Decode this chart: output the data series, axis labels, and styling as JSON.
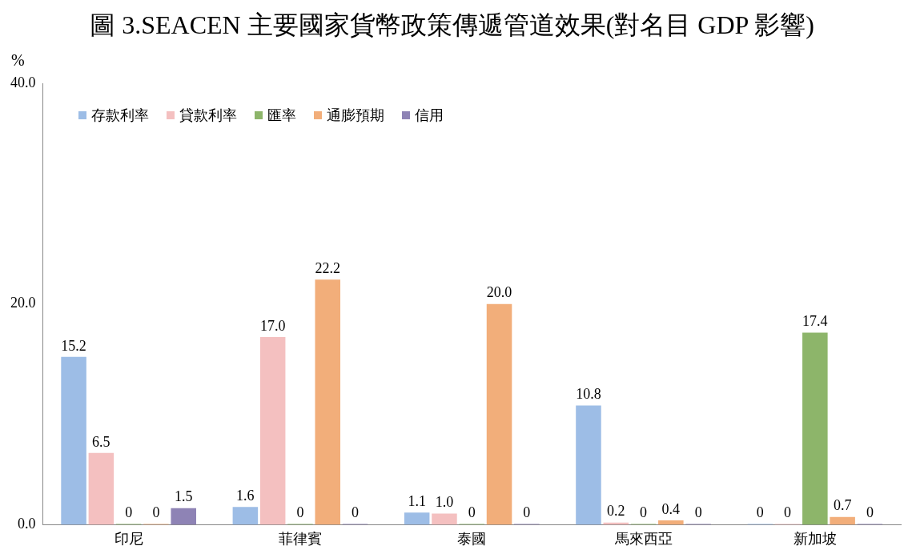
{
  "chart_data": {
    "type": "bar",
    "title": "圖 3.SEACEN 主要國家貨幣政策傳遞管道效果(對名目 GDP 影響)",
    "ylabel": "%",
    "categories": [
      "印尼",
      "菲律賓",
      "泰國",
      "馬來西亞",
      "新加坡"
    ],
    "series": [
      {
        "name": "存款利率",
        "color": "#9dbde6",
        "values": [
          15.2,
          1.6,
          1.1,
          10.8,
          0
        ],
        "value_labels": [
          "15.2",
          "1.6",
          "1.1",
          "10.8",
          "0"
        ]
      },
      {
        "name": "貸款利率",
        "color": "#f4c0c0",
        "values": [
          6.5,
          17.0,
          1.0,
          0.2,
          0
        ],
        "value_labels": [
          "6.5",
          "17.0",
          "1.0",
          "0.2",
          "0"
        ]
      },
      {
        "name": "匯率",
        "color": "#8db56a",
        "values": [
          0,
          0,
          0,
          0,
          17.4
        ],
        "value_labels": [
          "0",
          "0",
          "0",
          "0",
          "17.4"
        ]
      },
      {
        "name": "通膨預期",
        "color": "#f2ae7a",
        "values": [
          0,
          22.2,
          20.0,
          0.4,
          0.7
        ],
        "value_labels": [
          "0",
          "22.2",
          "20.0",
          "0.4",
          "0.7"
        ]
      },
      {
        "name": "信用",
        "color": "#8e83b5",
        "values": [
          1.5,
          0,
          0,
          0,
          0
        ],
        "value_labels": [
          "1.5",
          "0",
          "0",
          "0",
          "0"
        ]
      }
    ],
    "ylim": [
      0,
      40
    ],
    "yticks": [
      {
        "value": 0,
        "label": "0.0"
      },
      {
        "value": 20,
        "label": "20.0"
      },
      {
        "value": 40,
        "label": "40.0"
      }
    ],
    "grid": false,
    "legend": "top left"
  }
}
